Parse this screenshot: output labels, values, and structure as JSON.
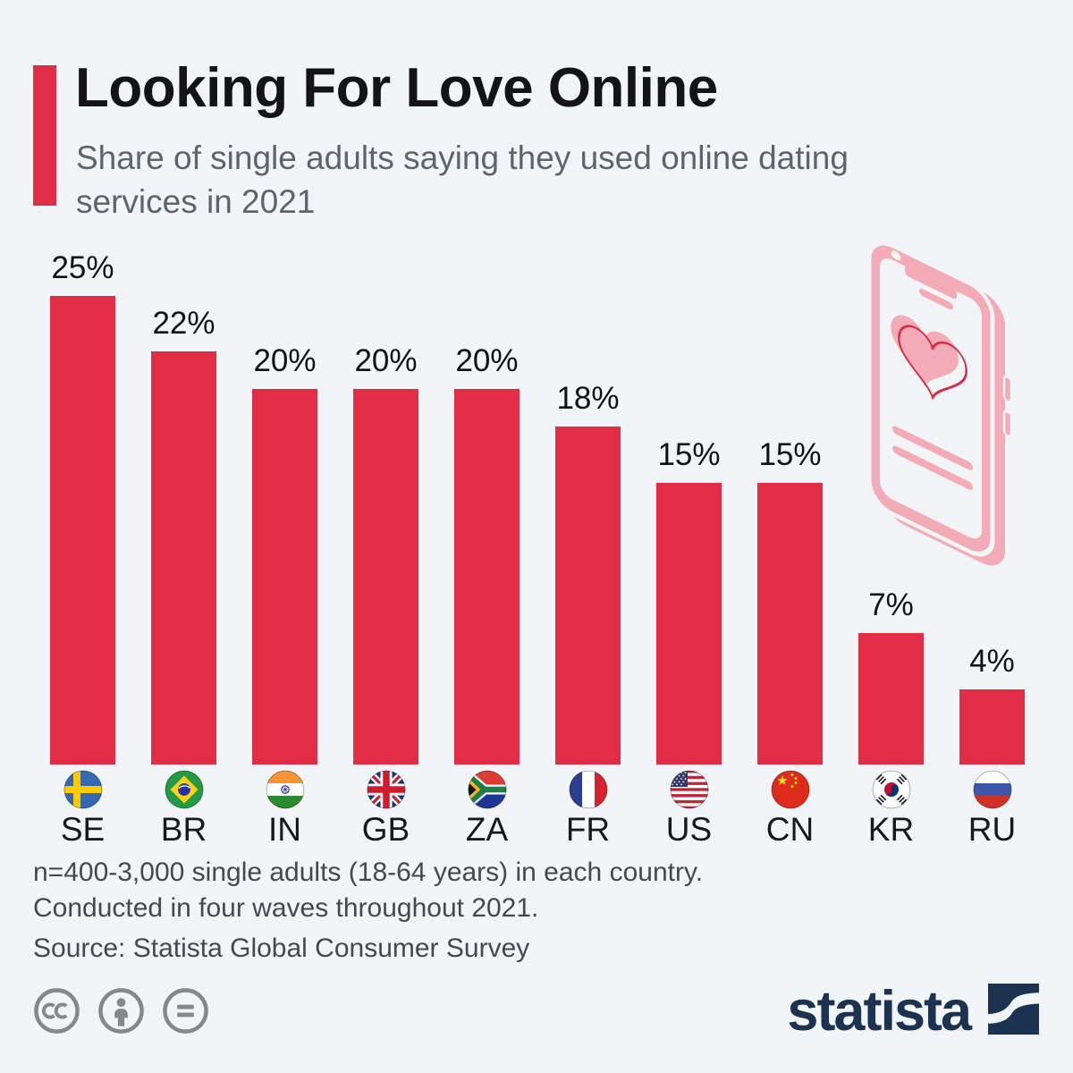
{
  "header": {
    "title": "Looking For Love Online",
    "subtitle": "Share of single adults saying they used online dating services in 2021",
    "subtitle_lines": [
      "Share of single adults saying they used online dating",
      "services in 2021"
    ]
  },
  "chart_data": {
    "type": "bar",
    "title": "Share of single adults saying they used online dating services in 2021",
    "categories": [
      "SE",
      "BR",
      "IN",
      "GB",
      "ZA",
      "FR",
      "US",
      "CN",
      "KR",
      "RU"
    ],
    "values": [
      25,
      22,
      20,
      20,
      20,
      18,
      15,
      15,
      7,
      4
    ],
    "value_labels": [
      "25%",
      "22%",
      "20%",
      "20%",
      "20%",
      "18%",
      "15%",
      "15%",
      "7%",
      "4%"
    ],
    "unit": "%",
    "ylim": [
      0,
      26
    ],
    "grid": false,
    "legend": false,
    "bar_color": "#e12d46",
    "value_labels_position": "above",
    "flags": [
      {
        "code": "SE",
        "icon": "flag-se-icon"
      },
      {
        "code": "BR",
        "icon": "flag-br-icon"
      },
      {
        "code": "IN",
        "icon": "flag-in-icon"
      },
      {
        "code": "GB",
        "icon": "flag-gb-icon"
      },
      {
        "code": "ZA",
        "icon": "flag-za-icon"
      },
      {
        "code": "FR",
        "icon": "flag-fr-icon"
      },
      {
        "code": "US",
        "icon": "flag-us-icon"
      },
      {
        "code": "CN",
        "icon": "flag-cn-icon"
      },
      {
        "code": "KR",
        "icon": "flag-kr-icon"
      },
      {
        "code": "RU",
        "icon": "flag-ru-icon"
      }
    ]
  },
  "illustration": {
    "name": "phone-with-heart-illustration",
    "pink": "#f2abb7",
    "outline_red": "#d92a45"
  },
  "footnote": {
    "line1": "n=400-3,000 single adults (18-64 years) in each country.",
    "line2": "Conducted in four waves throughout 2021.",
    "source": "Source: Statista Global Consumer Survey"
  },
  "footer": {
    "license_icons": [
      "cc-icon",
      "attribution-icon",
      "no-derivatives-icon"
    ],
    "brand": "statista"
  },
  "colors": {
    "background": "#f2f5f8",
    "accent_red": "#e12d46",
    "title_text": "#141416",
    "subtitle_text": "#5f646a",
    "footnote_text": "#45494d",
    "license_gray": "#84888b",
    "brand_navy": "#1b3350"
  }
}
